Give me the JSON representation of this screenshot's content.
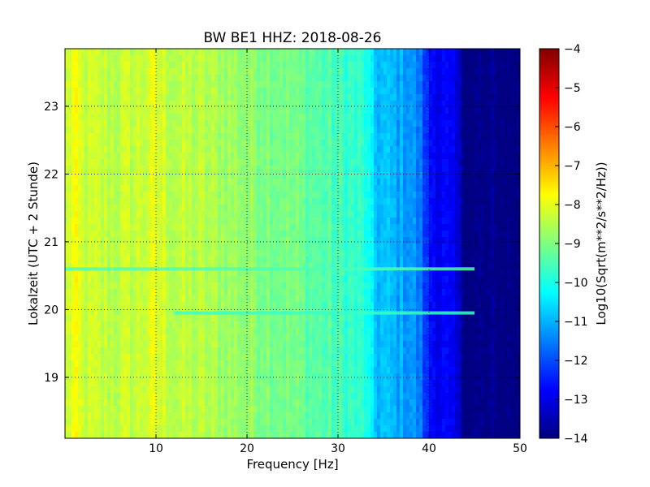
{
  "chart_data": {
    "type": "heatmap",
    "title": "BW BE1 HHZ: 2018-08-26",
    "xlabel": "Frequency [Hz]",
    "ylabel": "Lokalzeit (UTC + 2 Stunde)",
    "xlim": [
      0,
      50
    ],
    "ylim": [
      23.85,
      18.1
    ],
    "x_ticks": [
      10,
      20,
      30,
      40,
      50
    ],
    "x_tick_labels": [
      "10",
      "20",
      "30",
      "40",
      "50"
    ],
    "y_ticks": [
      19,
      20,
      21,
      22,
      23
    ],
    "y_tick_labels": [
      "19",
      "20",
      "21",
      "22",
      "23"
    ],
    "grid": true,
    "colorbar": {
      "label": "Log10(Sqrt(m**2/s**2/Hz))",
      "range": [
        -14,
        -4
      ],
      "ticks": [
        -4,
        -5,
        -6,
        -7,
        -8,
        -9,
        -10,
        -11,
        -12,
        -13,
        -14
      ],
      "tick_labels": [
        "−4",
        "−5",
        "−6",
        "−7",
        "−8",
        "−9",
        "−10",
        "−11",
        "−12",
        "−13",
        "−14"
      ],
      "colormap": "jet"
    },
    "spectrum_profile": {
      "frequency_hz": [
        0,
        1,
        2,
        5,
        8,
        10,
        12,
        15,
        20,
        25,
        30,
        33,
        34,
        36,
        38,
        39,
        40,
        42,
        43,
        44,
        50
      ],
      "log10_amplitude": [
        -8.4,
        -7.9,
        -8.3,
        -8.4,
        -8.3,
        -8.1,
        -8.4,
        -8.5,
        -8.8,
        -9.1,
        -9.6,
        -9.9,
        -10.8,
        -11.0,
        -11.2,
        -11.6,
        -12.6,
        -12.9,
        -13.2,
        -14.0,
        -14.0
      ]
    },
    "horizontal_lines": [
      {
        "time": 19.95,
        "from_hz": 12,
        "to_hz": 45,
        "log10_amplitude": -9.7
      },
      {
        "time": 20.6,
        "from_hz": 0,
        "to_hz": 45,
        "log10_amplitude": -9.5
      }
    ]
  }
}
